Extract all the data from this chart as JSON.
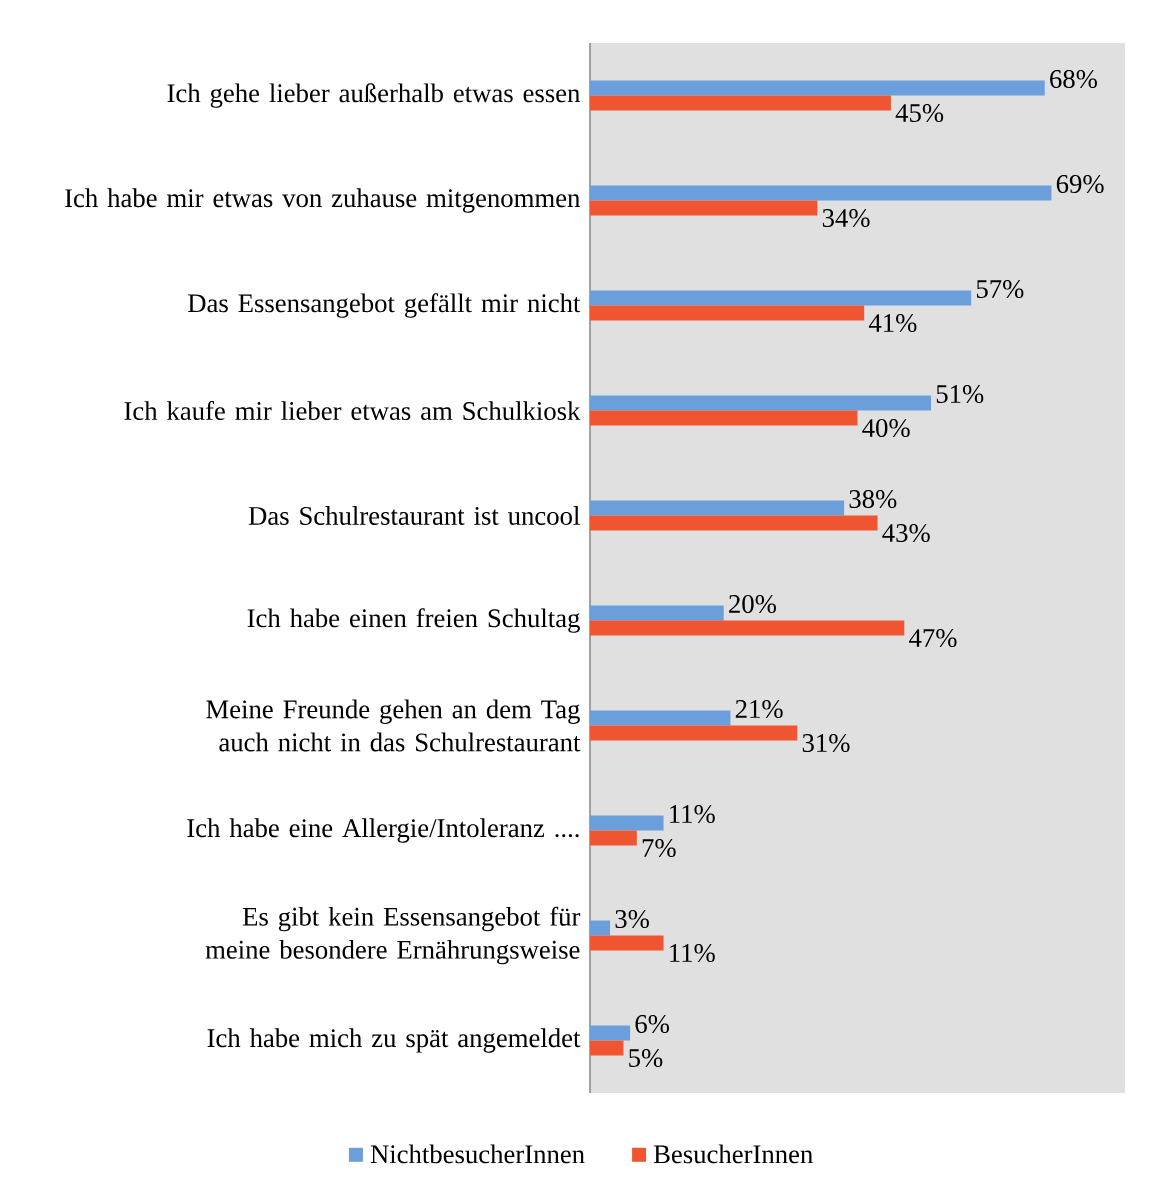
{
  "chart_data": {
    "type": "bar",
    "orientation": "horizontal",
    "legend": "bottom",
    "xlim": [
      0,
      80
    ],
    "categories": [
      "Ich gehe lieber außerhalb etwas essen",
      "Ich habe mir etwas von zuhause mitgenommen",
      "Das Essensangebot gefällt mir nicht",
      "Ich kaufe mir lieber etwas am Schulkiosk",
      "Das Schulrestaurant ist uncool",
      "Ich habe einen freien Schultag",
      "Meine Freunde gehen an dem Tag auch nicht in das Schulrestaurant",
      "Ich habe eine Allergie/Intoleranz ....",
      "Es gibt kein Essensangebot für meine besondere Ernährungsweise",
      "Ich habe mich zu spät angemeldet"
    ],
    "series": [
      {
        "name": "NichtbesucherInnen",
        "color": "#6a9fdc",
        "values": [
          68,
          69,
          57,
          51,
          38,
          20,
          21,
          11,
          3,
          6
        ],
        "value_labels": [
          "68%",
          "69%",
          "57%",
          "51%",
          "38%",
          "20%",
          "21%",
          "11%",
          "3%",
          "6%"
        ]
      },
      {
        "name": "BesucherInnen",
        "color": "#ee5530",
        "values": [
          45,
          34,
          41,
          40,
          43,
          47,
          31,
          7,
          11,
          5
        ],
        "value_labels": [
          "45%",
          "34%",
          "41%",
          "40%",
          "43%",
          "47%",
          "31%",
          "7%",
          "11%",
          "5%"
        ]
      }
    ]
  }
}
